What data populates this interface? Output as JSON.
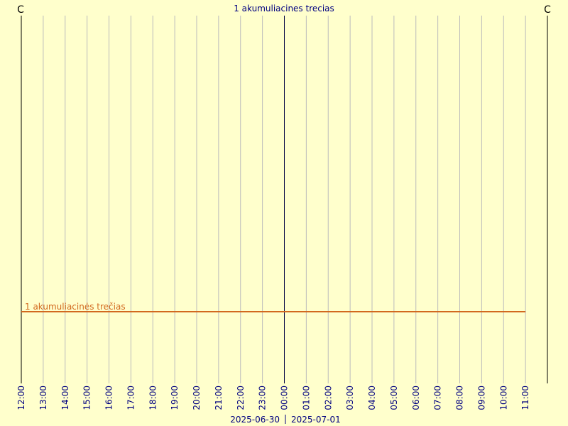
{
  "chart_data": {
    "type": "line",
    "title": "1 akumuliacines trecias",
    "y_unit": "C",
    "categories": [
      "12:00",
      "13:00",
      "14:00",
      "15:00",
      "16:00",
      "17:00",
      "18:00",
      "19:00",
      "20:00",
      "21:00",
      "22:00",
      "23:00",
      "00:00",
      "01:00",
      "02:00",
      "03:00",
      "04:00",
      "05:00",
      "06:00",
      "07:00",
      "08:00",
      "09:00",
      "10:00",
      "11:00"
    ],
    "day_boundary": "00:00",
    "date_labels": [
      "2025-06-30",
      "2025-07-01"
    ],
    "ylim": [
      0,
      100
    ],
    "grid": true,
    "series": [
      {
        "name": "1 akumuliacinės trečias",
        "color": "#d2691e",
        "values": [
          19.5,
          19.5,
          19.5,
          19.5,
          19.5,
          19.5,
          19.5,
          19.5,
          19.5,
          19.5,
          19.5,
          19.5,
          19.5,
          19.5,
          19.5,
          19.5,
          19.5,
          19.5,
          19.5,
          19.5,
          19.5,
          19.5,
          19.5,
          19.5
        ]
      }
    ]
  }
}
